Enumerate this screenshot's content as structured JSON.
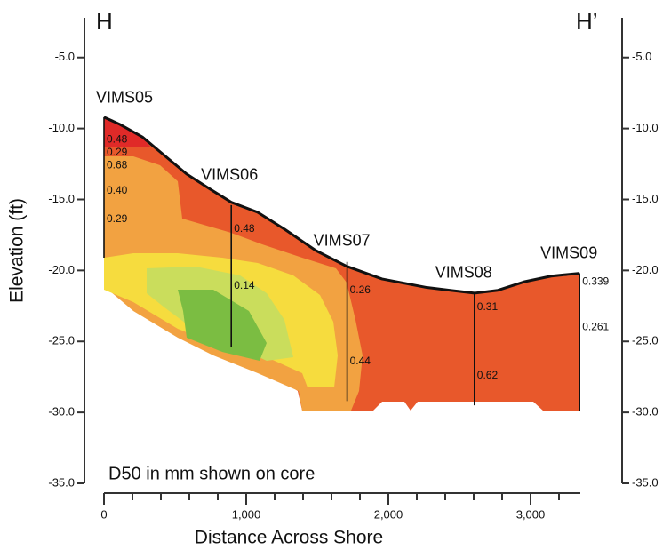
{
  "chart_data": {
    "type": "profile",
    "left_label": "H",
    "right_label": "H’",
    "y_label": "Elevation (ft)",
    "x_label": "Distance Across Shore",
    "annotation": "D50 in mm shown on core",
    "xlim": [
      0,
      3350
    ],
    "xticks": [
      0,
      {
        "value": 1000,
        "label": "1,000"
      },
      {
        "value": 2000,
        "label": "2,000"
      },
      {
        "value": 3000,
        "label": "3,000"
      }
    ],
    "xminorticks": [
      200,
      400,
      600,
      800,
      1200,
      1400,
      1600,
      1800,
      2200,
      2400,
      2600,
      2800,
      3200
    ],
    "ylim": [
      -35,
      -2.2
    ],
    "yticks": [
      {
        "value": -5,
        "label": "-5.0"
      },
      {
        "value": -10,
        "label": "-10.0"
      },
      {
        "value": -15,
        "label": "-15.0"
      },
      {
        "value": -20,
        "label": "-20.0"
      },
      {
        "value": -25,
        "label": "-25.0"
      },
      {
        "value": -30,
        "label": "-30.0"
      },
      {
        "value": -35,
        "label": "-35.0"
      }
    ],
    "y2lim": [
      -35,
      -2.2
    ],
    "y2ticks": [
      {
        "value": -5,
        "label": "-5.0"
      },
      {
        "value": -10,
        "label": "-10.0"
      },
      {
        "value": -15,
        "label": "-15.0"
      },
      {
        "value": -20,
        "label": "-20.0"
      },
      {
        "value": -25,
        "label": "-25.0"
      },
      {
        "value": -30,
        "label": "-30.0"
      },
      {
        "value": -35,
        "label": "-35.0"
      }
    ],
    "surface": {
      "x": [
        0,
        110,
        270,
        425,
        580,
        735,
        895,
        1080,
        1270,
        1490,
        1705,
        1955,
        2270,
        2605,
        2770,
        2955,
        3145,
        3345
      ],
      "y": [
        -9.2,
        -9.7,
        -10.6,
        -11.9,
        -13.2,
        -14.2,
        -15.2,
        -15.9,
        -17.1,
        -18.6,
        -19.7,
        -20.6,
        -21.2,
        -21.6,
        -21.4,
        -20.8,
        -20.4,
        -20.2
      ]
    },
    "cores": [
      {
        "name": "VIMS05",
        "x": 0,
        "top": -9.2,
        "bottom": -19.1,
        "samples": [
          {
            "depth": -10.8,
            "label": "0.48"
          },
          {
            "depth": -11.7,
            "label": "0.29"
          },
          {
            "depth": -12.6,
            "label": "0.68"
          },
          {
            "depth": -14.4,
            "label": "0.40"
          },
          {
            "depth": -16.4,
            "label": "0.29"
          }
        ]
      },
      {
        "name": "VIMS06",
        "x": 895,
        "top": -15.4,
        "bottom": -25.4,
        "samples": [
          {
            "depth": -17.1,
            "label": "0.48"
          },
          {
            "depth": -21.1,
            "label": "0.14"
          }
        ]
      },
      {
        "name": "VIMS07",
        "x": 1710,
        "top": -19.4,
        "bottom": -29.2,
        "samples": [
          {
            "depth": -21.4,
            "label": "0.26"
          },
          {
            "depth": -26.4,
            "label": "0.44"
          }
        ]
      },
      {
        "name": "VIMS08",
        "x": 2605,
        "top": -21.6,
        "bottom": -29.5,
        "samples": [
          {
            "depth": -22.6,
            "label": "0.31"
          },
          {
            "depth": -27.4,
            "label": "0.62"
          }
        ]
      },
      {
        "name": "VIMS09",
        "x": 3345,
        "top": -20.2,
        "bottom": -29.9,
        "samples": [
          {
            "depth": -20.8,
            "label": "0.339"
          },
          {
            "depth": -24.0,
            "label": "0.261"
          }
        ]
      }
    ]
  }
}
